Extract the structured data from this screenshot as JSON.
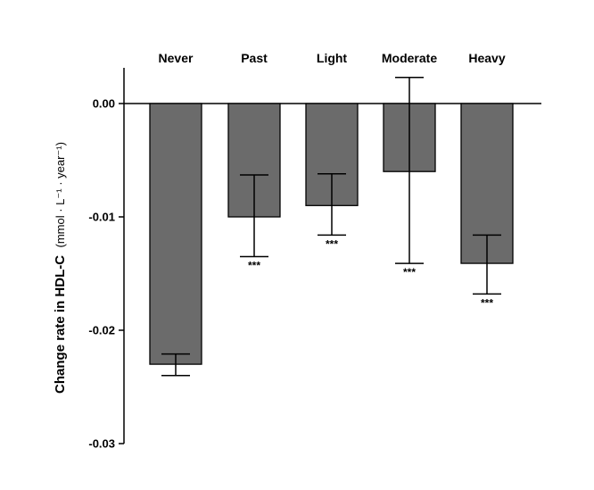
{
  "chart_data": {
    "type": "bar",
    "categories": [
      "Never",
      "Past",
      "Light",
      "Moderate",
      "Heavy"
    ],
    "values": [
      -0.023,
      -0.01,
      -0.009,
      -0.006,
      -0.0141
    ],
    "error_bars": {
      "lower": [
        -0.024,
        -0.0135,
        -0.0116,
        -0.0141,
        -0.0168
      ],
      "upper": [
        -0.0221,
        -0.0063,
        -0.0062,
        0.0023,
        -0.0116
      ]
    },
    "significance": [
      "",
      "***",
      "***",
      "***",
      "***"
    ],
    "ylabel_main": "Change rate in HDL-C",
    "ylabel_unit": "(mmol · L⁻¹ · year⁻¹)",
    "ylim": [
      -0.03,
      0.003
    ],
    "yticks": [
      0.0,
      -0.01,
      -0.02,
      -0.03
    ],
    "ytick_labels": [
      "0.00",
      "-0.01",
      "-0.02",
      "-0.03"
    ],
    "category_labels_position": "top",
    "grid": false,
    "bar_color": "#6b6b6b",
    "bar_edge_color": "#000000"
  }
}
